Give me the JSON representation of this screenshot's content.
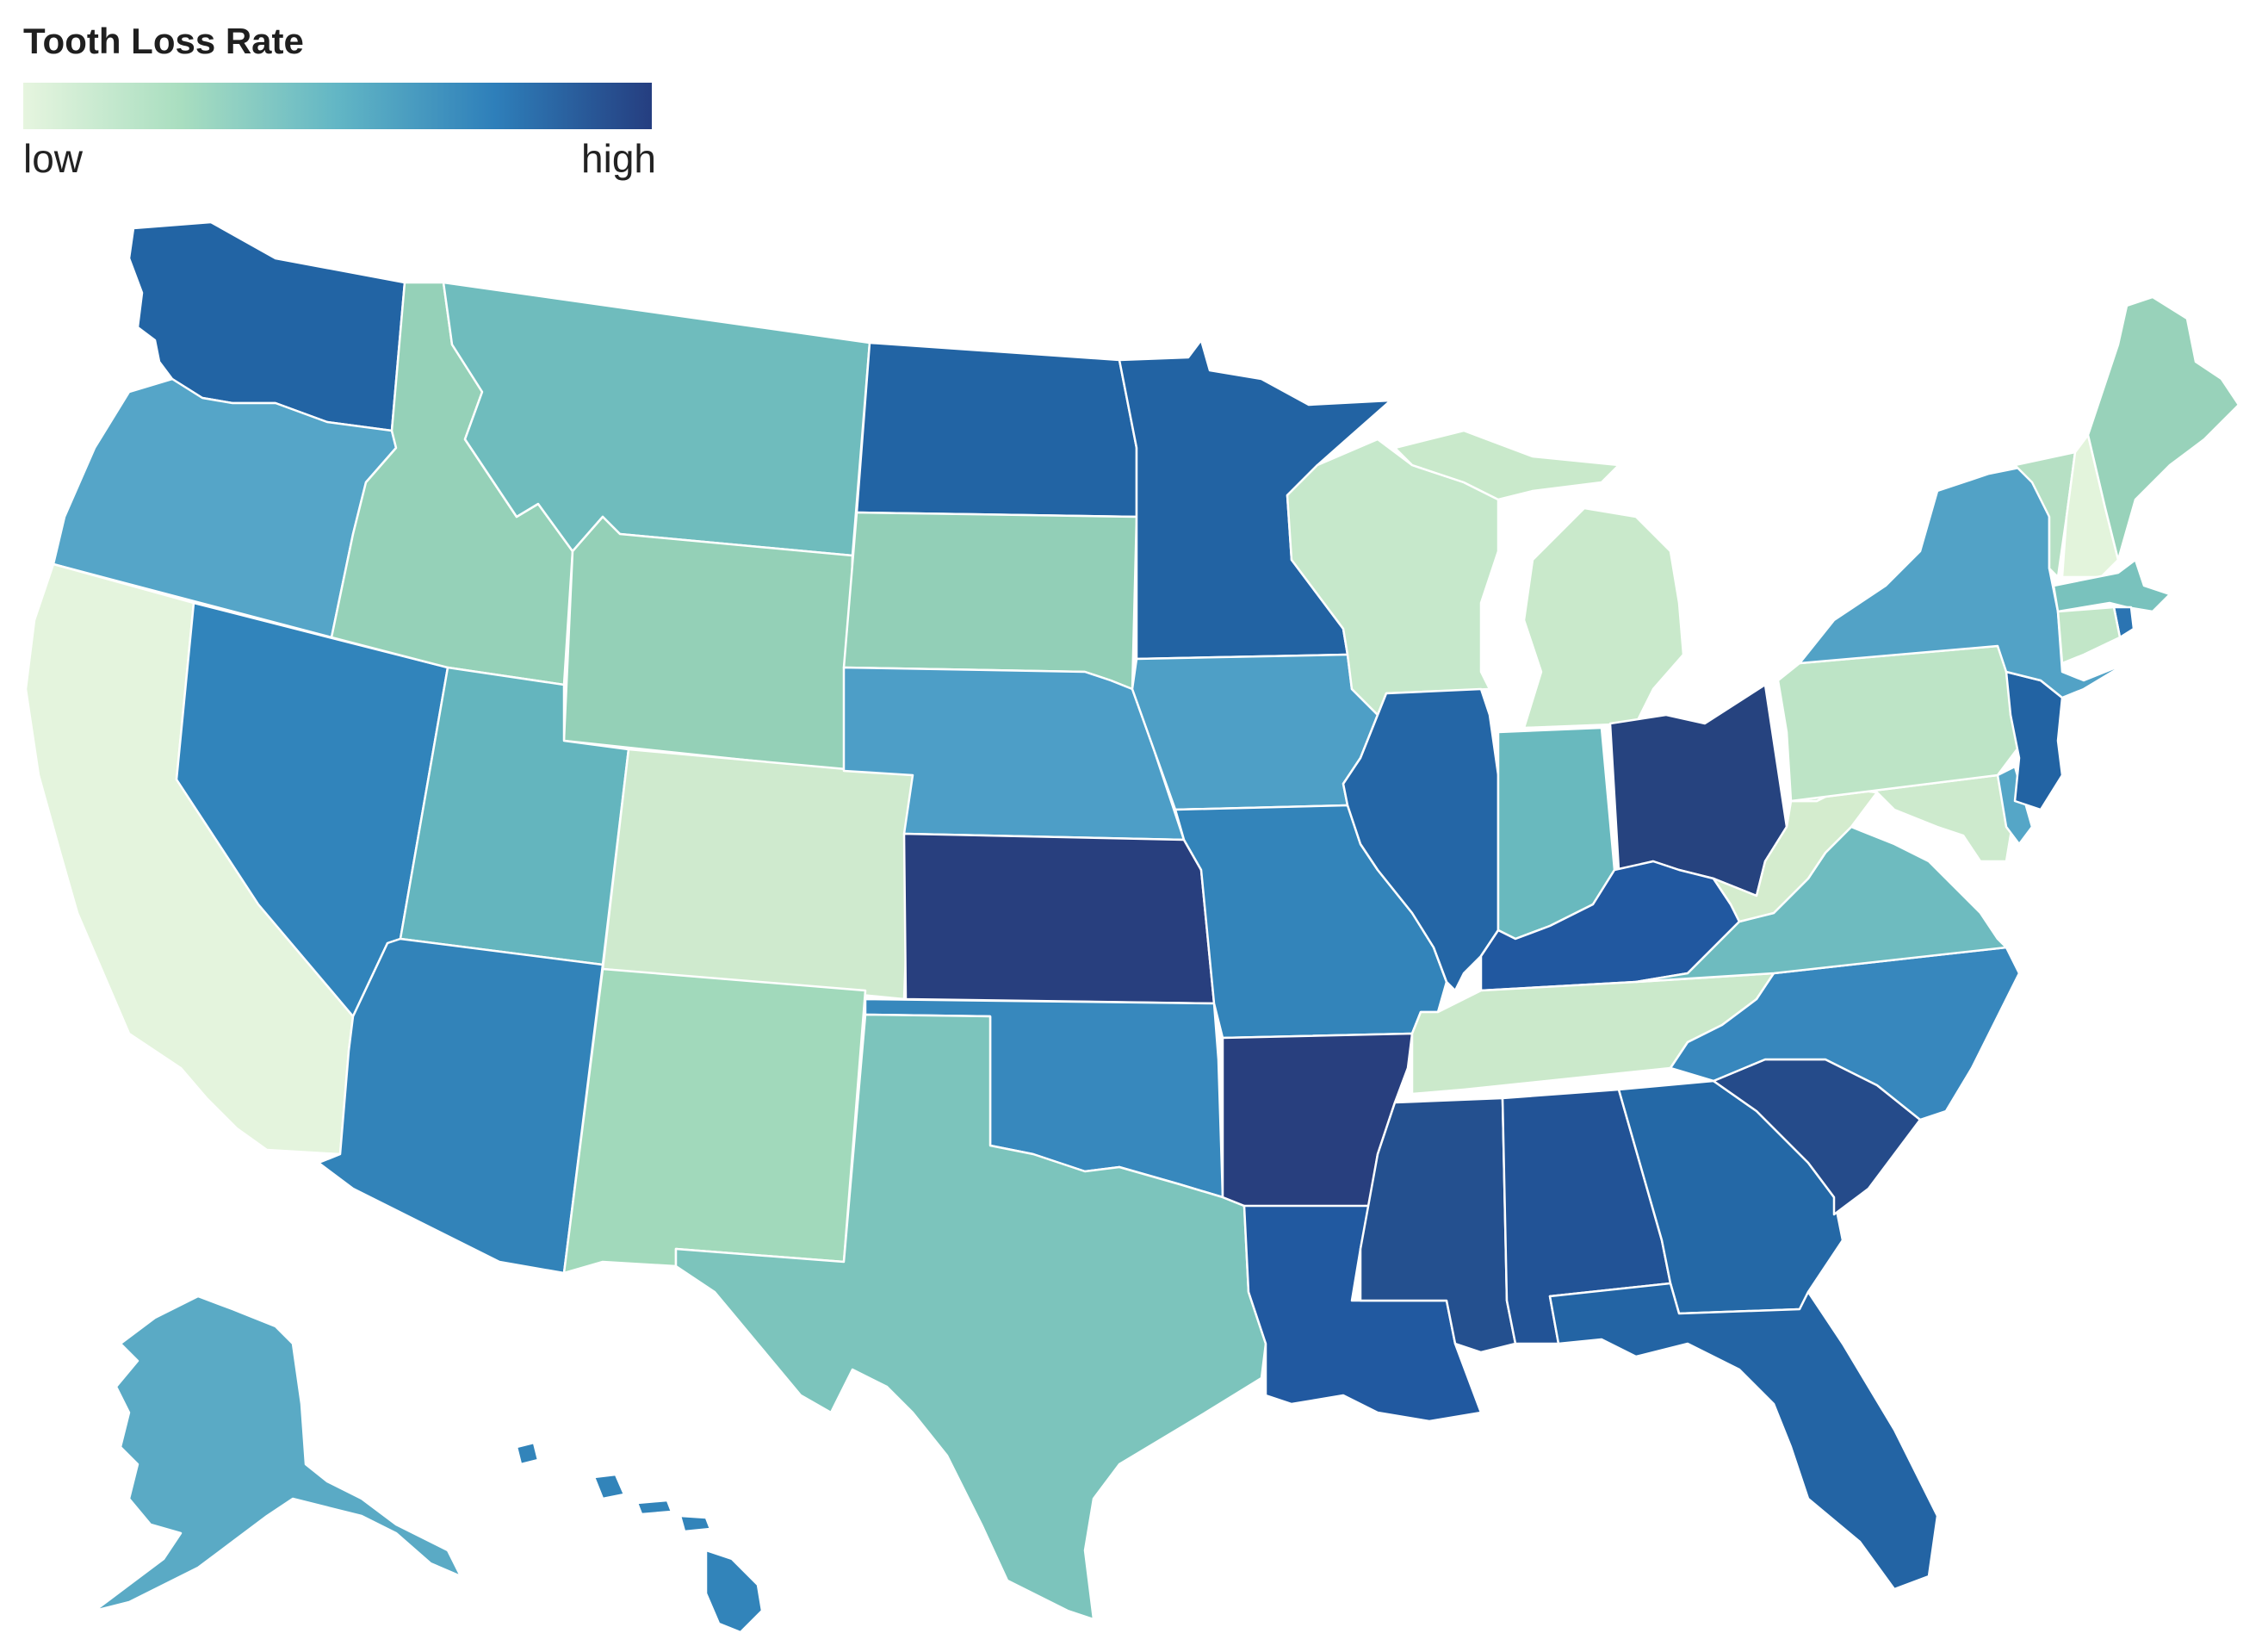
{
  "legend": {
    "title": "Tooth Loss Rate",
    "low_label": "low",
    "high_label": "high",
    "scale_colors": [
      "#e6f5df",
      "#a9dec0",
      "#62b6c5",
      "#2e7fba",
      "#253e80"
    ]
  },
  "map_data": {
    "type": "choropleth",
    "region": "United States",
    "metric": "Tooth Loss Rate",
    "scale": "relative (low to high)",
    "states": [
      {
        "code": "WA",
        "level": 0.82,
        "color": "#2264a4"
      },
      {
        "code": "OR",
        "level": 0.55,
        "color": "#55a5c8"
      },
      {
        "code": "CA",
        "level": 0.04,
        "color": "#e4f4dd"
      },
      {
        "code": "NV",
        "level": 0.72,
        "color": "#3184bb"
      },
      {
        "code": "ID",
        "level": 0.3,
        "color": "#95d1b8"
      },
      {
        "code": "MT",
        "level": 0.45,
        "color": "#6fbcbd"
      },
      {
        "code": "WY",
        "level": 0.32,
        "color": "#94d0b7"
      },
      {
        "code": "UT",
        "level": 0.5,
        "color": "#64b5be"
      },
      {
        "code": "CO",
        "level": 0.12,
        "color": "#cfeace"
      },
      {
        "code": "AZ",
        "level": 0.7,
        "color": "#3283b9"
      },
      {
        "code": "NM",
        "level": 0.28,
        "color": "#a1d9bb"
      },
      {
        "code": "ND",
        "level": 0.82,
        "color": "#2264a4"
      },
      {
        "code": "SD",
        "level": 0.33,
        "color": "#92cfb7"
      },
      {
        "code": "NE",
        "level": 0.6,
        "color": "#4d9ec7"
      },
      {
        "code": "KS",
        "level": 1.0,
        "color": "#283f7e"
      },
      {
        "code": "OK",
        "level": 0.7,
        "color": "#3788bd"
      },
      {
        "code": "TX",
        "level": 0.4,
        "color": "#7cc4bc"
      },
      {
        "code": "MN",
        "level": 0.82,
        "color": "#2263a3"
      },
      {
        "code": "IA",
        "level": 0.6,
        "color": "#4e9fc6"
      },
      {
        "code": "MO",
        "level": 0.72,
        "color": "#3384ba"
      },
      {
        "code": "AR",
        "level": 1.0,
        "color": "#283f7e"
      },
      {
        "code": "LA",
        "level": 0.86,
        "color": "#2159a0"
      },
      {
        "code": "WI",
        "level": 0.14,
        "color": "#c6e8cb"
      },
      {
        "code": "IL",
        "level": 0.8,
        "color": "#2466a6"
      },
      {
        "code": "MI",
        "level": 0.14,
        "color": "#c9e9cb"
      },
      {
        "code": "IN",
        "level": 0.47,
        "color": "#69b9be"
      },
      {
        "code": "OH",
        "level": 0.98,
        "color": "#26437f"
      },
      {
        "code": "KY",
        "level": 0.88,
        "color": "#2158a0"
      },
      {
        "code": "TN",
        "level": 0.12,
        "color": "#cbe9cb"
      },
      {
        "code": "MS",
        "level": 0.93,
        "color": "#24508f"
      },
      {
        "code": "AL",
        "level": 0.92,
        "color": "#225396"
      },
      {
        "code": "GA",
        "level": 0.78,
        "color": "#2468a6"
      },
      {
        "code": "FL",
        "level": 0.82,
        "color": "#2364a4"
      },
      {
        "code": "SC",
        "level": 0.95,
        "color": "#254b8a"
      },
      {
        "code": "NC",
        "level": 0.7,
        "color": "#3787bd"
      },
      {
        "code": "VA",
        "level": 0.45,
        "color": "#6ebbbf"
      },
      {
        "code": "WV",
        "level": 0.1,
        "color": "#d4ecce"
      },
      {
        "code": "PA",
        "level": 0.18,
        "color": "#bde4c6"
      },
      {
        "code": "NY",
        "level": 0.58,
        "color": "#52a2c6"
      },
      {
        "code": "VT",
        "level": 0.22,
        "color": "#b6e0c4"
      },
      {
        "code": "NH",
        "level": 0.04,
        "color": "#e3f4dc"
      },
      {
        "code": "ME",
        "level": 0.32,
        "color": "#98d2ba"
      },
      {
        "code": "MA",
        "level": 0.42,
        "color": "#79c2bd"
      },
      {
        "code": "RI",
        "level": 0.75,
        "color": "#2b74b2"
      },
      {
        "code": "CT",
        "level": 0.16,
        "color": "#c2e6c8"
      },
      {
        "code": "NJ",
        "level": 0.82,
        "color": "#2263a3"
      },
      {
        "code": "DE",
        "level": 0.55,
        "color": "#55a6c7"
      },
      {
        "code": "MD",
        "level": 0.12,
        "color": "#cdeacd"
      },
      {
        "code": "AK",
        "level": 0.52,
        "color": "#5aaac5"
      },
      {
        "code": "HI",
        "level": 0.72,
        "color": "#3284ba"
      }
    ]
  }
}
